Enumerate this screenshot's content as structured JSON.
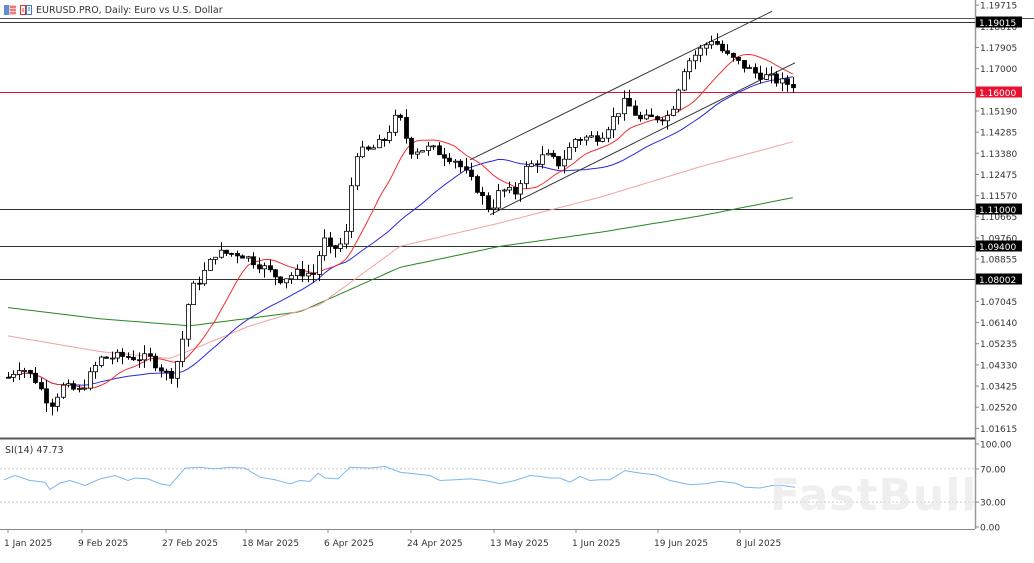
{
  "header": {
    "symbol": "EURUSD.PRO",
    "timeframe": "Daily",
    "description": "Euro vs U.S. Dollar",
    "title": "EURUSD.PRO, Daily:  Euro vs U.S. Dollar"
  },
  "rsi": {
    "label": "SI(14) 47.73",
    "period": 14,
    "value": 47.73,
    "levels": [
      70,
      30
    ],
    "axis_labels": [
      "100.00",
      "70.00",
      "30.00",
      "0.00"
    ],
    "color": "#7ab8f0"
  },
  "watermark": "FastBull",
  "colors": {
    "current_price": "#e8102f",
    "level_line": "#333333",
    "ma_fast": "#f03030",
    "ma_mid": "#2828d8",
    "ma_slow": "#f4a0a0",
    "ma_longest": "#228822",
    "channel": "#333333",
    "rsi": "#7ab8f0"
  },
  "chart_data": {
    "type": "candlestick",
    "title": "EURUSD.PRO, Daily: Euro vs U.S. Dollar",
    "xlabel": "",
    "ylabel": "",
    "ylim": [
      1.0072,
      1.1975
    ],
    "price_axis_labels": [
      "1.19715",
      "1.18810",
      "1.17905",
      "1.17000",
      "1.15190",
      "1.14285",
      "1.13380",
      "1.12475",
      "1.11570",
      "1.10665",
      "1.09760",
      "1.08855",
      "1.07045",
      "1.06140",
      "1.05235",
      "1.04330",
      "1.03425",
      "1.02520",
      "1.01615"
    ],
    "time_axis_labels": [
      "1 Jan 2025",
      "9 Feb 2025",
      "27 Feb 2025",
      "18 Mar 2025",
      "6 Apr 2025",
      "24 Apr 2025",
      "13 May 2025",
      "1 Jun 2025",
      "19 Jun 2025",
      "8 Jul 2025"
    ],
    "horizontal_levels": [
      {
        "price": 1.19015,
        "label": "1.19015",
        "style": "black"
      },
      {
        "price": 1.16,
        "label": "1.16000",
        "style": "red",
        "note": "current price"
      },
      {
        "price": 1.11,
        "label": "1.11000",
        "style": "black"
      },
      {
        "price": 1.094,
        "label": "1.09400",
        "style": "black"
      },
      {
        "price": 1.08002,
        "label": "1.08002",
        "style": "black"
      }
    ],
    "ascending_channel": {
      "upper": [
        {
          "date": "13 May 2025",
          "price": 1.13
        },
        {
          "date": "12 Jul 2025",
          "price": 1.192
        }
      ],
      "lower": [
        {
          "date": "13 May 2025",
          "price": 1.108
        },
        {
          "date": "12 Jul 2025",
          "price": 1.17
        }
      ]
    },
    "close_approx": [
      {
        "date": "1 Jan 2025",
        "price": 1.038
      },
      {
        "date": "9 Feb 2025",
        "price": 1.033
      },
      {
        "date": "27 Feb 2025",
        "price": 1.038
      },
      {
        "date": "5 Mar 2025",
        "price": 1.079
      },
      {
        "date": "18 Mar 2025",
        "price": 1.091
      },
      {
        "date": "27 Mar 2025",
        "price": 1.08
      },
      {
        "date": "6 Apr 2025",
        "price": 1.096
      },
      {
        "date": "11 Apr 2025",
        "price": 1.135
      },
      {
        "date": "21 Apr 2025",
        "price": 1.151
      },
      {
        "date": "24 Apr 2025",
        "price": 1.136
      },
      {
        "date": "12 May 2025",
        "price": 1.109
      },
      {
        "date": "1 Jun 2025",
        "price": 1.141
      },
      {
        "date": "19 Jun 2025",
        "price": 1.149
      },
      {
        "date": "1 Jul 2025",
        "price": 1.179
      },
      {
        "date": "8 Jul 2025",
        "price": 1.172
      },
      {
        "date": "14 Jul 2025",
        "price": 1.166
      },
      {
        "date": "17 Jul 2025",
        "price": 1.163
      }
    ],
    "series": [
      {
        "name": "MA fast (red)",
        "end_value": 1.165
      },
      {
        "name": "MA medium (blue)",
        "end_value": 1.157
      },
      {
        "name": "MA slow (light red)",
        "end_value": 1.137
      },
      {
        "name": "MA 200 (green)",
        "end_value": 1.114
      }
    ],
    "grid": false,
    "legend": "none"
  }
}
